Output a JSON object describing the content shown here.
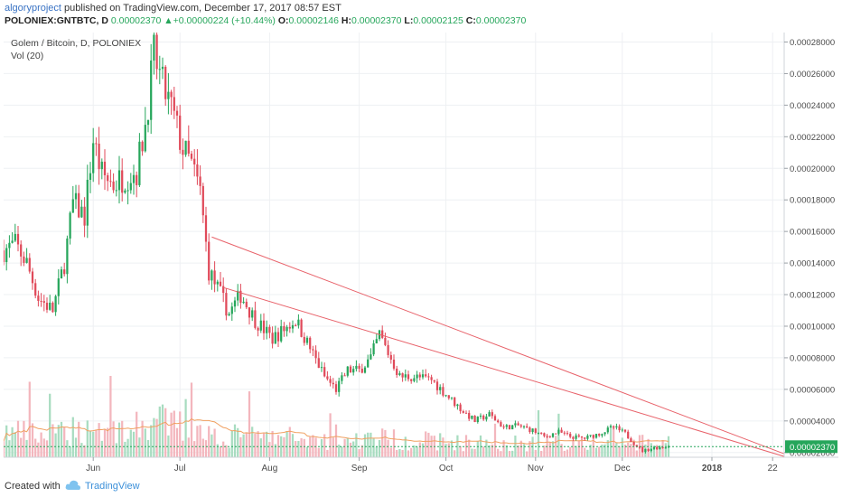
{
  "header": {
    "author": "algoryproject",
    "published_text": " published on TradingView.com, December 17, 2017 08:57 EST"
  },
  "quote": {
    "symbol": "POLONIEX:GNTBTC, D",
    "last": "0.00002370",
    "arrow": "▲",
    "change": "+0.00000224 (+10.44%)",
    "open_label": "O:",
    "open": "0.00002146",
    "high_label": "H:",
    "high": "0.00002370",
    "low_label": "L:",
    "low": "0.00002125",
    "close_label": "C:",
    "close": "0.00002370"
  },
  "legend": {
    "title": "Golem / Bitcoin, D, POLONIEX",
    "volume": "Vol (20)"
  },
  "footer": {
    "created": "Created with",
    "brand": "TradingView"
  },
  "colors": {
    "up": "#26a65b",
    "down": "#e04a5a",
    "trendline": "#e8626a",
    "vol_up": "#a8dcc0",
    "vol_down": "#f3b6bd",
    "vol_ma": "#f0a060",
    "price_line": "#26a65b"
  },
  "chart_data": {
    "type": "candlestick",
    "title": "Golem / Bitcoin, D, POLONIEX",
    "y_axis": {
      "min": 1.7e-05,
      "max": 0.000286,
      "ticks": [
        "0.00002000",
        "0.00004000",
        "0.00006000",
        "0.00008000",
        "0.00010000",
        "0.00012000",
        "0.00014000",
        "0.00016000",
        "0.00018000",
        "0.00020000",
        "0.00022000",
        "0.00024000",
        "0.00026000",
        "0.00028000"
      ],
      "last_price_label": "0.00002370",
      "last_price": 2.37e-05
    },
    "x_axis": {
      "start": "2017-05-01",
      "end": "2018-01-26",
      "ticks": [
        {
          "label": "Jun",
          "date": "2017-06-01"
        },
        {
          "label": "Jul",
          "date": "2017-07-01"
        },
        {
          "label": "Aug",
          "date": "2017-08-01"
        },
        {
          "label": "Sep",
          "date": "2017-09-01"
        },
        {
          "label": "Oct",
          "date": "2017-10-01"
        },
        {
          "label": "Nov",
          "date": "2017-11-01"
        },
        {
          "label": "Dec",
          "date": "2017-12-01"
        },
        {
          "label": "2018",
          "date": "2018-01-01"
        },
        {
          "label": "22",
          "date": "2018-01-22"
        }
      ]
    },
    "price_anchors": [
      [
        "2017-05-01",
        0.000148
      ],
      [
        "2017-05-05",
        0.000152
      ],
      [
        "2017-05-09",
        0.00014
      ],
      [
        "2017-05-13",
        0.000118
      ],
      [
        "2017-05-18",
        0.00011
      ],
      [
        "2017-05-22",
        0.00014
      ],
      [
        "2017-05-25",
        0.000178
      ],
      [
        "2017-05-29",
        0.00017
      ],
      [
        "2017-06-01",
        0.000218
      ],
      [
        "2017-06-04",
        0.000196
      ],
      [
        "2017-06-08",
        0.00019
      ],
      [
        "2017-06-12",
        0.000195
      ],
      [
        "2017-06-16",
        0.000198
      ],
      [
        "2017-06-19",
        0.000228
      ],
      [
        "2017-06-22",
        0.000272
      ],
      [
        "2017-06-25",
        0.000252
      ],
      [
        "2017-06-28",
        0.000238
      ],
      [
        "2017-07-02",
        0.000212
      ],
      [
        "2017-07-05",
        0.000202
      ],
      [
        "2017-07-08",
        0.000185
      ],
      [
        "2017-07-11",
        0.000135
      ],
      [
        "2017-07-15",
        0.00012
      ],
      [
        "2017-07-18",
        0.000108
      ],
      [
        "2017-07-22",
        0.00012
      ],
      [
        "2017-07-27",
        0.000104
      ],
      [
        "2017-08-02",
        9.2e-05
      ],
      [
        "2017-08-06",
        9.8e-05
      ],
      [
        "2017-08-10",
        0.000104
      ],
      [
        "2017-08-15",
        8.6e-05
      ],
      [
        "2017-08-20",
        6.8e-05
      ],
      [
        "2017-08-24",
        6e-05
      ],
      [
        "2017-08-28",
        7.2e-05
      ],
      [
        "2017-09-01",
        7.2e-05
      ],
      [
        "2017-09-05",
        8e-05
      ],
      [
        "2017-09-08",
        9.5e-05
      ],
      [
        "2017-09-11",
        8.3e-05
      ],
      [
        "2017-09-15",
        6.8e-05
      ],
      [
        "2017-09-20",
        6.8e-05
      ],
      [
        "2017-09-26",
        6.6e-05
      ],
      [
        "2017-10-02",
        5.5e-05
      ],
      [
        "2017-10-07",
        4.6e-05
      ],
      [
        "2017-10-11",
        4e-05
      ],
      [
        "2017-10-16",
        4.4e-05
      ],
      [
        "2017-10-21",
        3.6e-05
      ],
      [
        "2017-10-26",
        3.7e-05
      ],
      [
        "2017-10-31",
        3.4e-05
      ],
      [
        "2017-11-04",
        3e-05
      ],
      [
        "2017-11-09",
        3.3e-05
      ],
      [
        "2017-11-13",
        3e-05
      ],
      [
        "2017-11-18",
        2.9e-05
      ],
      [
        "2017-11-23",
        3.2e-05
      ],
      [
        "2017-11-28",
        3.6e-05
      ],
      [
        "2017-12-02",
        3.2e-05
      ],
      [
        "2017-12-05",
        2.6e-05
      ],
      [
        "2017-12-08",
        2.1e-05
      ],
      [
        "2017-12-12",
        2.3e-05
      ],
      [
        "2017-12-17",
        2.37e-05
      ]
    ],
    "trendlines": [
      {
        "from": [
          "2017-07-12",
          0.0001565
        ],
        "to": [
          "2018-01-26",
          1.92e-05
        ]
      },
      {
        "from": [
          "2017-07-16",
          0.0001245
        ],
        "to": [
          "2018-01-26",
          1.75e-05
        ]
      }
    ],
    "volume": {
      "indicator": "Vol (20)",
      "max_relative": 1.0
    }
  }
}
